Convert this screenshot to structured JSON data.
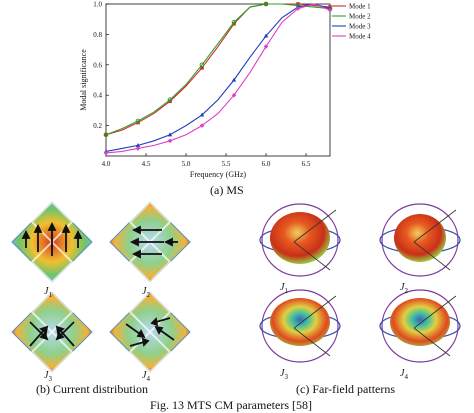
{
  "chart_data": {
    "type": "line",
    "xlabel": "Frequency (GHz)",
    "ylabel": "Modal significance",
    "xlim": [
      4.0,
      6.8
    ],
    "ylim": [
      0.0,
      1.0
    ],
    "xticks": [
      "4.0",
      "4.5",
      "5.0",
      "5.5",
      "6.0",
      "6.5"
    ],
    "yticks": [
      "0.2",
      "0.4",
      "0.6",
      "0.8",
      "1.0"
    ],
    "legend_position": "right",
    "series": [
      {
        "name": "Mode 1",
        "color": "#d62728",
        "marker": "square",
        "x": [
          4.0,
          4.2,
          4.4,
          4.6,
          4.8,
          5.0,
          5.2,
          5.4,
          5.6,
          5.8,
          6.0,
          6.2,
          6.4,
          6.6,
          6.8
        ],
        "y": [
          0.14,
          0.17,
          0.22,
          0.28,
          0.36,
          0.46,
          0.58,
          0.72,
          0.87,
          0.98,
          1.0,
          1.0,
          1.0,
          0.99,
          0.98
        ]
      },
      {
        "name": "Mode 2",
        "color": "#2ca02c",
        "marker": "circle",
        "x": [
          4.0,
          4.2,
          4.4,
          4.6,
          4.8,
          5.0,
          5.2,
          5.4,
          5.6,
          5.8,
          6.0,
          6.2,
          6.4,
          6.6,
          6.8
        ],
        "y": [
          0.14,
          0.18,
          0.23,
          0.29,
          0.37,
          0.47,
          0.6,
          0.74,
          0.88,
          0.98,
          1.0,
          1.0,
          0.99,
          0.98,
          0.97
        ]
      },
      {
        "name": "Mode 3",
        "color": "#1f3fbf",
        "marker": "triangle",
        "x": [
          4.0,
          4.2,
          4.4,
          4.6,
          4.8,
          5.0,
          5.2,
          5.4,
          5.6,
          5.8,
          6.0,
          6.2,
          6.4,
          6.6,
          6.8
        ],
        "y": [
          0.03,
          0.05,
          0.07,
          0.1,
          0.14,
          0.2,
          0.27,
          0.37,
          0.5,
          0.65,
          0.79,
          0.91,
          0.98,
          1.0,
          0.97
        ]
      },
      {
        "name": "Mode 4",
        "color": "#e040c0",
        "marker": "diamond",
        "x": [
          4.0,
          4.2,
          4.4,
          4.6,
          4.8,
          5.0,
          5.2,
          5.4,
          5.6,
          5.8,
          6.0,
          6.2,
          6.4,
          6.6,
          6.8
        ],
        "y": [
          0.02,
          0.03,
          0.05,
          0.07,
          0.1,
          0.14,
          0.2,
          0.28,
          0.4,
          0.55,
          0.72,
          0.88,
          0.97,
          1.0,
          0.96
        ]
      }
    ]
  },
  "captions": {
    "ms": "(a) MS",
    "current": "(b) Current distribution",
    "farfield": "(c) Far-field patterns",
    "figure": "Fig. 13 MTS CM parameters [58]"
  },
  "current_labels": [
    "J",
    "J",
    "J",
    "J"
  ],
  "current_subs": [
    "1",
    "2",
    "3",
    "4"
  ],
  "farfield_labels": [
    "J",
    "J",
    "J",
    "J"
  ],
  "farfield_subs": [
    "1",
    "2",
    "3",
    "4"
  ]
}
